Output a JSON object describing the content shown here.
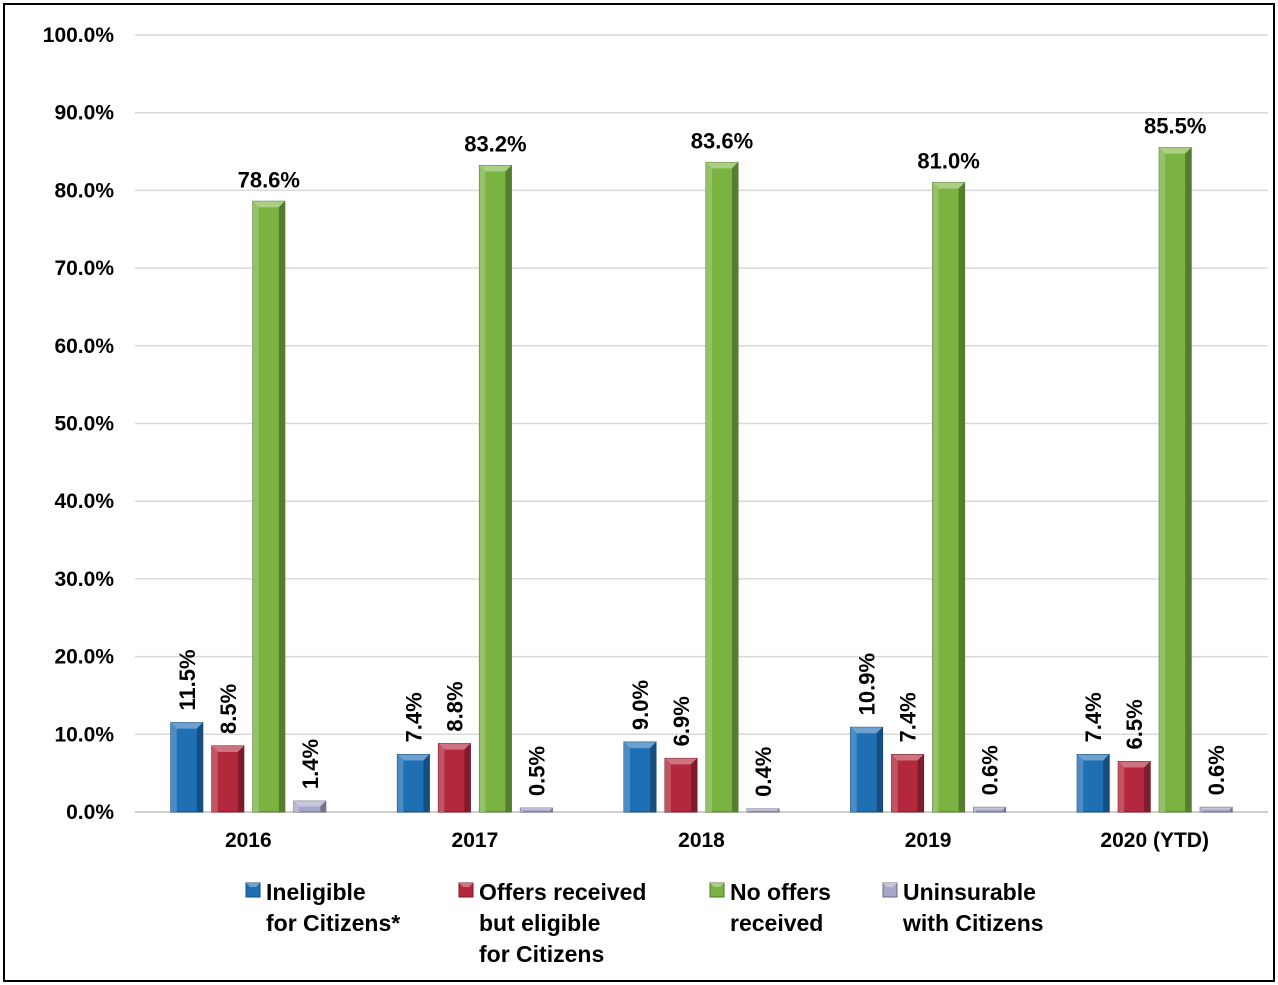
{
  "chart_data": {
    "type": "bar",
    "categories": [
      "2016",
      "2017",
      "2018",
      "2019",
      "2020 (YTD)"
    ],
    "series": [
      {
        "name": "Ineligible for Citizens*",
        "legend_lines": [
          "Ineligible",
          "for Citizens*"
        ],
        "color": "#1F6FB5",
        "values": [
          11.5,
          7.4,
          9.0,
          10.9,
          7.4
        ],
        "labels": [
          "11.5%",
          "7.4%",
          "9.0%",
          "10.9%",
          "7.4%"
        ]
      },
      {
        "name": "Offers received but eligible for Citizens",
        "legend_lines": [
          "Offers received",
          "but eligible",
          "for Citizens"
        ],
        "color": "#B3283C",
        "values": [
          8.5,
          8.8,
          6.9,
          7.4,
          6.5
        ],
        "labels": [
          "8.5%",
          "8.8%",
          "6.9%",
          "7.4%",
          "6.5%"
        ]
      },
      {
        "name": "No offers received",
        "legend_lines": [
          "No offers",
          "received"
        ],
        "color": "#7AB342",
        "values": [
          78.6,
          83.2,
          83.6,
          81.0,
          85.5
        ],
        "labels": [
          "78.6%",
          "83.2%",
          "83.6%",
          "81.0%",
          "85.5%"
        ]
      },
      {
        "name": "Uninsurable with Citizens",
        "legend_lines": [
          "Uninsurable",
          "with Citizens"
        ],
        "color": "#A6A6C8",
        "values": [
          1.4,
          0.5,
          0.4,
          0.6,
          0.6
        ],
        "labels": [
          "1.4%",
          "0.5%",
          "0.4%",
          "0.6%",
          "0.6%"
        ]
      }
    ],
    "y_ticks": [
      "0.0%",
      "10.0%",
      "20.0%",
      "30.0%",
      "40.0%",
      "50.0%",
      "60.0%",
      "70.0%",
      "80.0%",
      "90.0%",
      "100.0%"
    ],
    "ylim": [
      0,
      100
    ],
    "grid": true,
    "legend_position": "bottom"
  }
}
